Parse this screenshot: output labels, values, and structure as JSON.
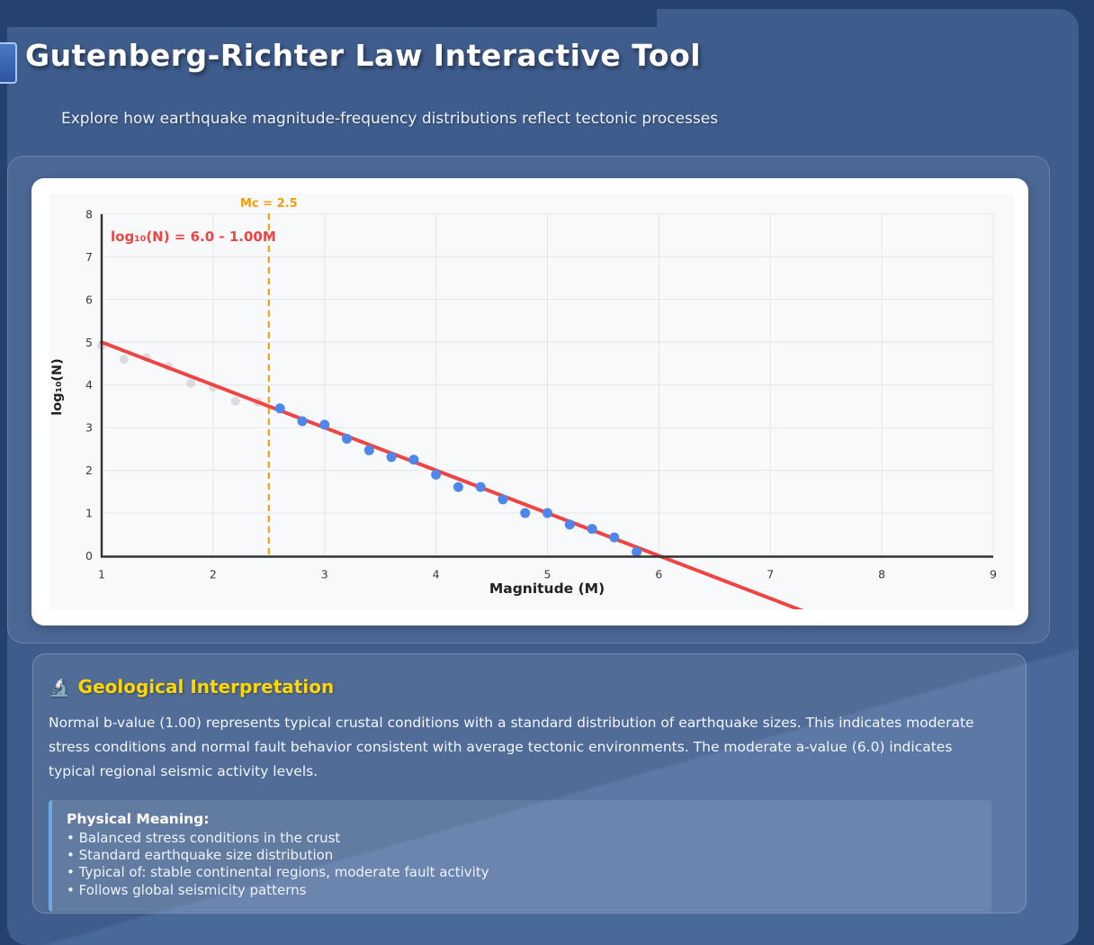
{
  "header": {
    "title": "Gutenberg-Richter Law Interactive Tool",
    "subtitle": "Explore how earthquake magnitude-frequency distributions reflect tectonic processes"
  },
  "chart_data": {
    "type": "scatter",
    "xlabel": "Magnitude (M)",
    "ylabel": "log₁₀(N)",
    "xlim": [
      1,
      9
    ],
    "ylim": [
      0,
      8
    ],
    "x_ticks": [
      1,
      2,
      3,
      4,
      5,
      6,
      7,
      8,
      9
    ],
    "y_ticks": [
      0,
      1,
      2,
      3,
      4,
      5,
      6,
      7,
      8
    ],
    "grid": true,
    "annotation": "log₁₀(N) = 6.0 - 1.00M",
    "completeness": {
      "label": "Mc = 2.5",
      "mc": 2.5
    },
    "fit_line": {
      "a_value": 6.0,
      "b_value": 1.0,
      "x_start": 1.0,
      "x_end": 7.3
    },
    "series": [
      {
        "name": "below-completeness",
        "color": "#d4d4d4",
        "opacity": 0.8,
        "radius": 5,
        "points": [
          [
            1.0,
            4.92
          ],
          [
            1.2,
            4.6
          ],
          [
            1.4,
            4.64
          ],
          [
            1.6,
            4.43
          ],
          [
            1.8,
            4.04
          ],
          [
            2.0,
            3.95
          ],
          [
            2.2,
            3.62
          ],
          [
            2.4,
            3.6
          ]
        ]
      },
      {
        "name": "above-completeness",
        "color": "#4f86ec",
        "opacity": 1,
        "radius": 5.5,
        "points": [
          [
            2.6,
            3.45
          ],
          [
            2.8,
            3.15
          ],
          [
            3.0,
            3.07
          ],
          [
            3.2,
            2.74
          ],
          [
            3.4,
            2.47
          ],
          [
            3.6,
            2.31
          ],
          [
            3.8,
            2.25
          ],
          [
            4.0,
            1.9
          ],
          [
            4.2,
            1.61
          ],
          [
            4.4,
            1.61
          ],
          [
            4.6,
            1.32
          ],
          [
            4.8,
            1.0
          ],
          [
            5.0,
            1.0
          ],
          [
            5.2,
            0.73
          ],
          [
            5.4,
            0.63
          ],
          [
            5.6,
            0.43
          ],
          [
            5.8,
            0.09
          ]
        ]
      }
    ],
    "colors": {
      "fit_line": "#ef4444",
      "completeness_line": "#f59e0b",
      "axis": "#333333",
      "gridline": "#e3e6e9",
      "plot_background": "#f8f9fa",
      "tick_text": "#3a3a3a"
    }
  },
  "interpretation": {
    "icon": "🔬",
    "heading": "Geological Interpretation",
    "heading_color": "#ffd700",
    "body": "Normal b-value (1.00) represents typical crustal conditions with a standard distribution of earthquake sizes. This indicates moderate stress conditions and normal fault behavior consistent with average tectonic environments. The moderate a-value (6.0) indicates typical regional seismic activity levels.",
    "physical_meaning": {
      "heading": "Physical Meaning:",
      "bullets": [
        "Balanced stress conditions in the crust",
        "Standard earthquake size distribution",
        "Typical of: stable continental regions, moderate fault activity",
        "Follows global seismicity patterns"
      ]
    }
  }
}
